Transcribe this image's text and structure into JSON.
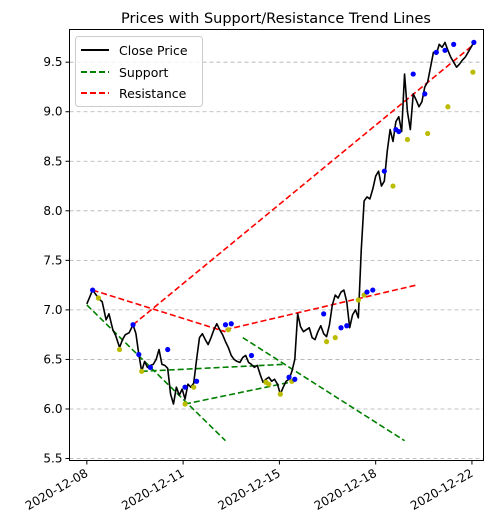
{
  "chart_data": {
    "type": "line",
    "title": "Prices with Support/Resistance Trend Lines",
    "xlabel": "",
    "ylabel": "",
    "ylim": [
      5.48,
      9.83
    ],
    "xlim": [
      -0.9,
      20.6
    ],
    "grid": {
      "axis": "y",
      "style": "dashed"
    },
    "legend_placement": "top-left",
    "x_ticks": [
      {
        "x": 0,
        "label": "2020-12-08"
      },
      {
        "x": 5,
        "label": "2020-12-11"
      },
      {
        "x": 10,
        "label": "2020-12-15"
      },
      {
        "x": 15,
        "label": "2020-12-18"
      },
      {
        "x": 20,
        "label": "2020-12-22"
      }
    ],
    "y_ticks": [
      5.5,
      6.0,
      6.5,
      7.0,
      7.5,
      8.0,
      8.5,
      9.0,
      9.5
    ],
    "y_tick_labels": [
      "5.5",
      "6.0",
      "6.5",
      "7.0",
      "7.5",
      "8.0",
      "8.5",
      "9.0",
      "9.5"
    ],
    "series": [
      {
        "name": "Close Price",
        "color": "#000000",
        "style": "solid",
        "x": [
          0.0,
          0.3,
          0.6,
          0.8,
          1.0,
          1.15,
          1.35,
          1.5,
          1.7,
          1.85,
          2.0,
          2.2,
          2.4,
          2.55,
          2.7,
          2.85,
          3.0,
          3.15,
          3.3,
          3.45,
          3.6,
          3.75,
          3.9,
          4.05,
          4.2,
          4.35,
          4.5,
          4.65,
          4.8,
          4.95,
          5.1,
          5.25,
          5.4,
          5.55,
          5.7,
          5.85,
          6.0,
          6.15,
          6.3,
          6.45,
          6.6,
          6.75,
          6.9,
          7.05,
          7.2,
          7.35,
          7.5,
          7.65,
          7.8,
          7.95,
          8.1,
          8.25,
          8.4,
          8.55,
          8.7,
          8.85,
          9.0,
          9.15,
          9.3,
          9.45,
          9.6,
          9.75,
          9.9,
          10.05,
          10.2,
          10.35,
          10.5,
          10.65,
          10.8,
          10.95,
          11.1,
          11.25,
          11.4,
          11.55,
          11.7,
          11.85,
          12.0,
          12.15,
          12.3,
          12.45,
          12.6,
          12.75,
          12.9,
          13.05,
          13.2,
          13.35,
          13.5,
          13.65,
          13.8,
          13.95,
          14.1,
          14.25,
          14.4,
          14.55,
          14.7,
          14.85,
          15.0,
          15.15,
          15.3,
          15.45,
          15.6,
          15.75,
          15.9,
          16.05,
          16.2,
          16.35,
          16.5,
          16.65,
          16.8,
          16.95,
          17.1,
          17.25,
          17.4,
          17.55,
          17.7,
          17.85,
          18.0,
          18.15,
          18.3,
          18.45,
          18.6,
          18.75,
          18.9,
          19.05,
          19.2,
          19.35,
          19.5,
          19.65,
          19.8,
          19.95,
          20.1
        ],
        "y": [
          7.06,
          7.2,
          7.12,
          7.08,
          6.9,
          6.96,
          6.8,
          6.74,
          6.62,
          6.7,
          6.75,
          6.77,
          6.85,
          6.76,
          6.55,
          6.38,
          6.48,
          6.42,
          6.44,
          6.45,
          6.5,
          6.6,
          6.45,
          6.44,
          6.41,
          6.15,
          6.05,
          6.22,
          6.14,
          6.2,
          6.1,
          6.25,
          6.22,
          6.26,
          6.5,
          6.72,
          6.76,
          6.7,
          6.65,
          6.72,
          6.8,
          6.86,
          6.8,
          6.75,
          6.68,
          6.62,
          6.54,
          6.5,
          6.48,
          6.47,
          6.52,
          6.54,
          6.47,
          6.45,
          6.42,
          6.44,
          6.35,
          6.27,
          6.3,
          6.32,
          6.28,
          6.3,
          6.25,
          6.15,
          6.22,
          6.28,
          6.3,
          6.38,
          6.5,
          6.96,
          6.83,
          6.78,
          6.8,
          6.82,
          6.72,
          6.7,
          6.78,
          6.84,
          6.76,
          6.73,
          6.85,
          7.05,
          7.15,
          7.12,
          7.18,
          7.2,
          7.08,
          6.82,
          6.95,
          7.0,
          6.92,
          7.6,
          8.1,
          8.14,
          8.12,
          8.22,
          8.35,
          8.4,
          8.25,
          8.3,
          8.6,
          8.82,
          8.7,
          8.9,
          8.95,
          8.8,
          9.38,
          9.0,
          8.82,
          9.18,
          9.12,
          9.05,
          9.1,
          9.25,
          9.3,
          9.45,
          9.6,
          9.58,
          9.68,
          9.65,
          9.7,
          9.62,
          9.55,
          9.5,
          9.45,
          9.48,
          9.52,
          9.55,
          9.6,
          9.65,
          9.7
        ]
      },
      {
        "name": "Support",
        "color": "#008000",
        "style": "dashed",
        "lines": [
          {
            "x": [
              0.0,
              7.2
            ],
            "y": [
              7.05,
              5.68
            ]
          },
          {
            "x": 2.85,
            "y": 6.38,
            "x_end": 10.2,
            "y_end": 6.45
          },
          {
            "x": 5.1,
            "y": 6.05,
            "x_end": 10.8,
            "y_end": 6.28
          },
          {
            "x": 8.1,
            "y": 6.72,
            "x_end": 16.5,
            "y_end": 5.68
          }
        ]
      },
      {
        "name": "Resistance",
        "color": "#ff0000",
        "style": "dashed",
        "lines": [
          {
            "x": [
              0.3,
              7.2
            ],
            "y": [
              7.2,
              6.78
            ]
          },
          {
            "x": [
              2.4,
              20.1
            ],
            "y": [
              6.85,
              9.68
            ]
          },
          {
            "x": [
              7.2,
              17.1
            ],
            "y": [
              6.8,
              7.25
            ]
          }
        ]
      }
    ],
    "markers": {
      "peaks": {
        "color": "#0000ff",
        "x": [
          0.3,
          2.4,
          2.7,
          3.3,
          4.2,
          5.1,
          5.7,
          7.2,
          7.5,
          8.55,
          10.5,
          10.8,
          12.3,
          13.2,
          13.5,
          14.55,
          14.85,
          15.45,
          16.05,
          16.2,
          16.95,
          17.55,
          18.15,
          18.6,
          19.05,
          20.1
        ],
        "y": [
          7.2,
          6.85,
          6.55,
          6.42,
          6.6,
          6.22,
          6.28,
          6.85,
          6.86,
          6.54,
          6.32,
          6.3,
          6.96,
          6.82,
          6.84,
          7.18,
          7.2,
          8.4,
          8.82,
          8.8,
          9.38,
          9.18,
          9.6,
          9.62,
          9.68,
          9.7
        ]
      },
      "troughs": {
        "color": "#bbbb00",
        "x": [
          0.6,
          1.7,
          2.85,
          5.1,
          5.55,
          7.35,
          9.3,
          9.45,
          10.05,
          10.65,
          12.45,
          12.9,
          14.1,
          14.4,
          15.9,
          16.65,
          17.7,
          18.75,
          20.05
        ],
        "y": [
          7.12,
          6.6,
          6.38,
          6.05,
          6.22,
          6.8,
          6.27,
          6.25,
          6.15,
          6.28,
          6.68,
          6.72,
          7.1,
          7.15,
          8.25,
          8.72,
          8.78,
          9.05,
          9.4
        ]
      }
    }
  }
}
